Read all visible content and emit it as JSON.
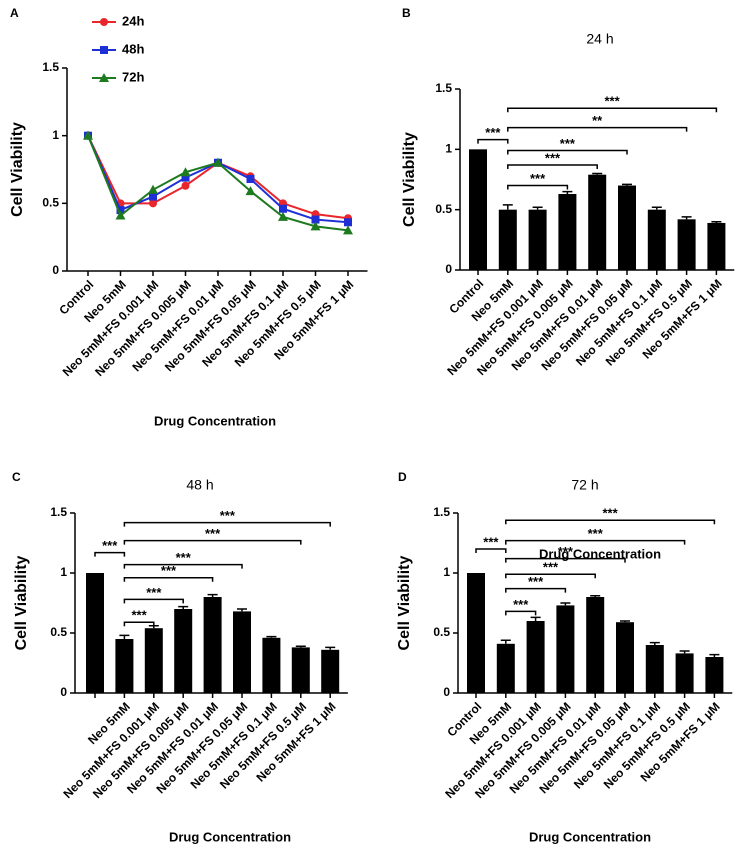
{
  "chart_data": [
    {
      "type": "line",
      "panel": "A",
      "ylabel": "Cell Viability",
      "xlabel": "Drug Concentration",
      "categories": [
        "Control",
        "Neo 5mM",
        "Neo 5mM+FS 0.001 μM",
        "Neo 5mM+FS 0.005 μM",
        "Neo 5mM+FS 0.01 μM",
        "Neo 5mM+FS 0.05 μM",
        "Neo 5mM+FS 0.1 μM",
        "Neo 5mM+FS 0.5 μM",
        "Neo 5mM+FS 1 μM"
      ],
      "series": [
        {
          "name": "24h",
          "color": "#e8262b",
          "marker": "circle",
          "values": [
            1,
            0.5,
            0.5,
            0.63,
            0.8,
            0.7,
            0.5,
            0.42,
            0.39
          ]
        },
        {
          "name": "48h",
          "color": "#1f2fd6",
          "marker": "square",
          "values": [
            1,
            0.45,
            0.55,
            0.69,
            0.8,
            0.68,
            0.46,
            0.38,
            0.36
          ]
        },
        {
          "name": "72h",
          "color": "#1e7a1e",
          "marker": "triangle",
          "values": [
            1,
            0.41,
            0.6,
            0.73,
            0.8,
            0.59,
            0.4,
            0.33,
            0.3
          ]
        }
      ],
      "ylim": [
        0,
        1.5
      ],
      "yticks": [
        0,
        0.5,
        1,
        1.5
      ]
    },
    {
      "type": "bar",
      "panel": "B",
      "title": "24 h",
      "ylabel": "Cell Viability",
      "xlabel": "Drug Concentration",
      "categories": [
        "Control",
        "Neo 5mM",
        "Neo 5mM+FS 0.001 μM",
        "Neo 5mM+FS 0.005 μM",
        "Neo 5mM+FS 0.01 μM",
        "Neo 5mM+FS 0.05 μM",
        "Neo 5mM+FS 0.1 μM",
        "Neo 5mM+FS 0.5 μM",
        "Neo 5mM+FS 1 μM"
      ],
      "values": [
        1,
        0.5,
        0.5,
        0.63,
        0.79,
        0.7,
        0.5,
        0.42,
        0.39
      ],
      "errors": [
        0,
        0.04,
        0.02,
        0.02,
        0.01,
        0.01,
        0.02,
        0.02,
        0.01
      ],
      "color": "#000000",
      "ylim": [
        0,
        1.5
      ],
      "yticks": [
        0,
        0.5,
        1,
        1.5
      ],
      "annotations": [
        "***",
        "***",
        "***",
        "***",
        "**",
        "***"
      ]
    },
    {
      "type": "bar",
      "panel": "C",
      "title": "48 h",
      "ylabel": "Cell Viability",
      "xlabel": "Drug Concentration",
      "categories": [
        null,
        "Neo 5mM",
        "Neo 5mM+FS 0.001 μM",
        "Neo 5mM+FS 0.005 μM",
        "Neo 5mM+FS 0.01 μM",
        "Neo 5mM+FS 0.05 μM",
        "Neo 5mM+FS 0.1 μM",
        "Neo 5mM+FS 0.5 μM",
        "Neo 5mM+FS 1 μM"
      ],
      "values": [
        1,
        0.45,
        0.54,
        0.7,
        0.8,
        0.68,
        0.46,
        0.38,
        0.36
      ],
      "errors": [
        0,
        0.03,
        0.02,
        0.02,
        0.02,
        0.02,
        0.01,
        0.01,
        0.02
      ],
      "color": "#000000",
      "ylim": [
        0,
        1.5
      ],
      "yticks": [
        0,
        0.5,
        1,
        1.5
      ],
      "annotations": [
        "***",
        "***",
        "***",
        "***",
        "***",
        "***",
        "***"
      ]
    },
    {
      "type": "bar",
      "panel": "D",
      "title": "72 h",
      "ylabel": "Cell Viability",
      "xlabel": "Drug Concentration",
      "categories": [
        "Control",
        "Neo 5mM",
        "Neo 5mM+FS 0.001 μM",
        "Neo 5mM+FS 0.005 μM",
        "Neo 5mM+FS 0.01 μM",
        "Neo 5mM+FS 0.05 μM",
        "Neo 5mM+FS 0.1 μM",
        "Neo 5mM+FS 0.5 μM",
        "Neo 5mM+FS 1 μM"
      ],
      "values": [
        1,
        0.41,
        0.6,
        0.73,
        0.8,
        0.59,
        0.4,
        0.33,
        0.3
      ],
      "errors": [
        0,
        0.03,
        0.03,
        0.02,
        0.01,
        0.01,
        0.02,
        0.02,
        0.02
      ],
      "color": "#000000",
      "ylim": [
        0,
        1.5
      ],
      "yticks": [
        0,
        0.5,
        1,
        1.5
      ],
      "annotations": [
        "***",
        "***",
        "***",
        "***",
        "***",
        "***",
        "***"
      ]
    }
  ]
}
